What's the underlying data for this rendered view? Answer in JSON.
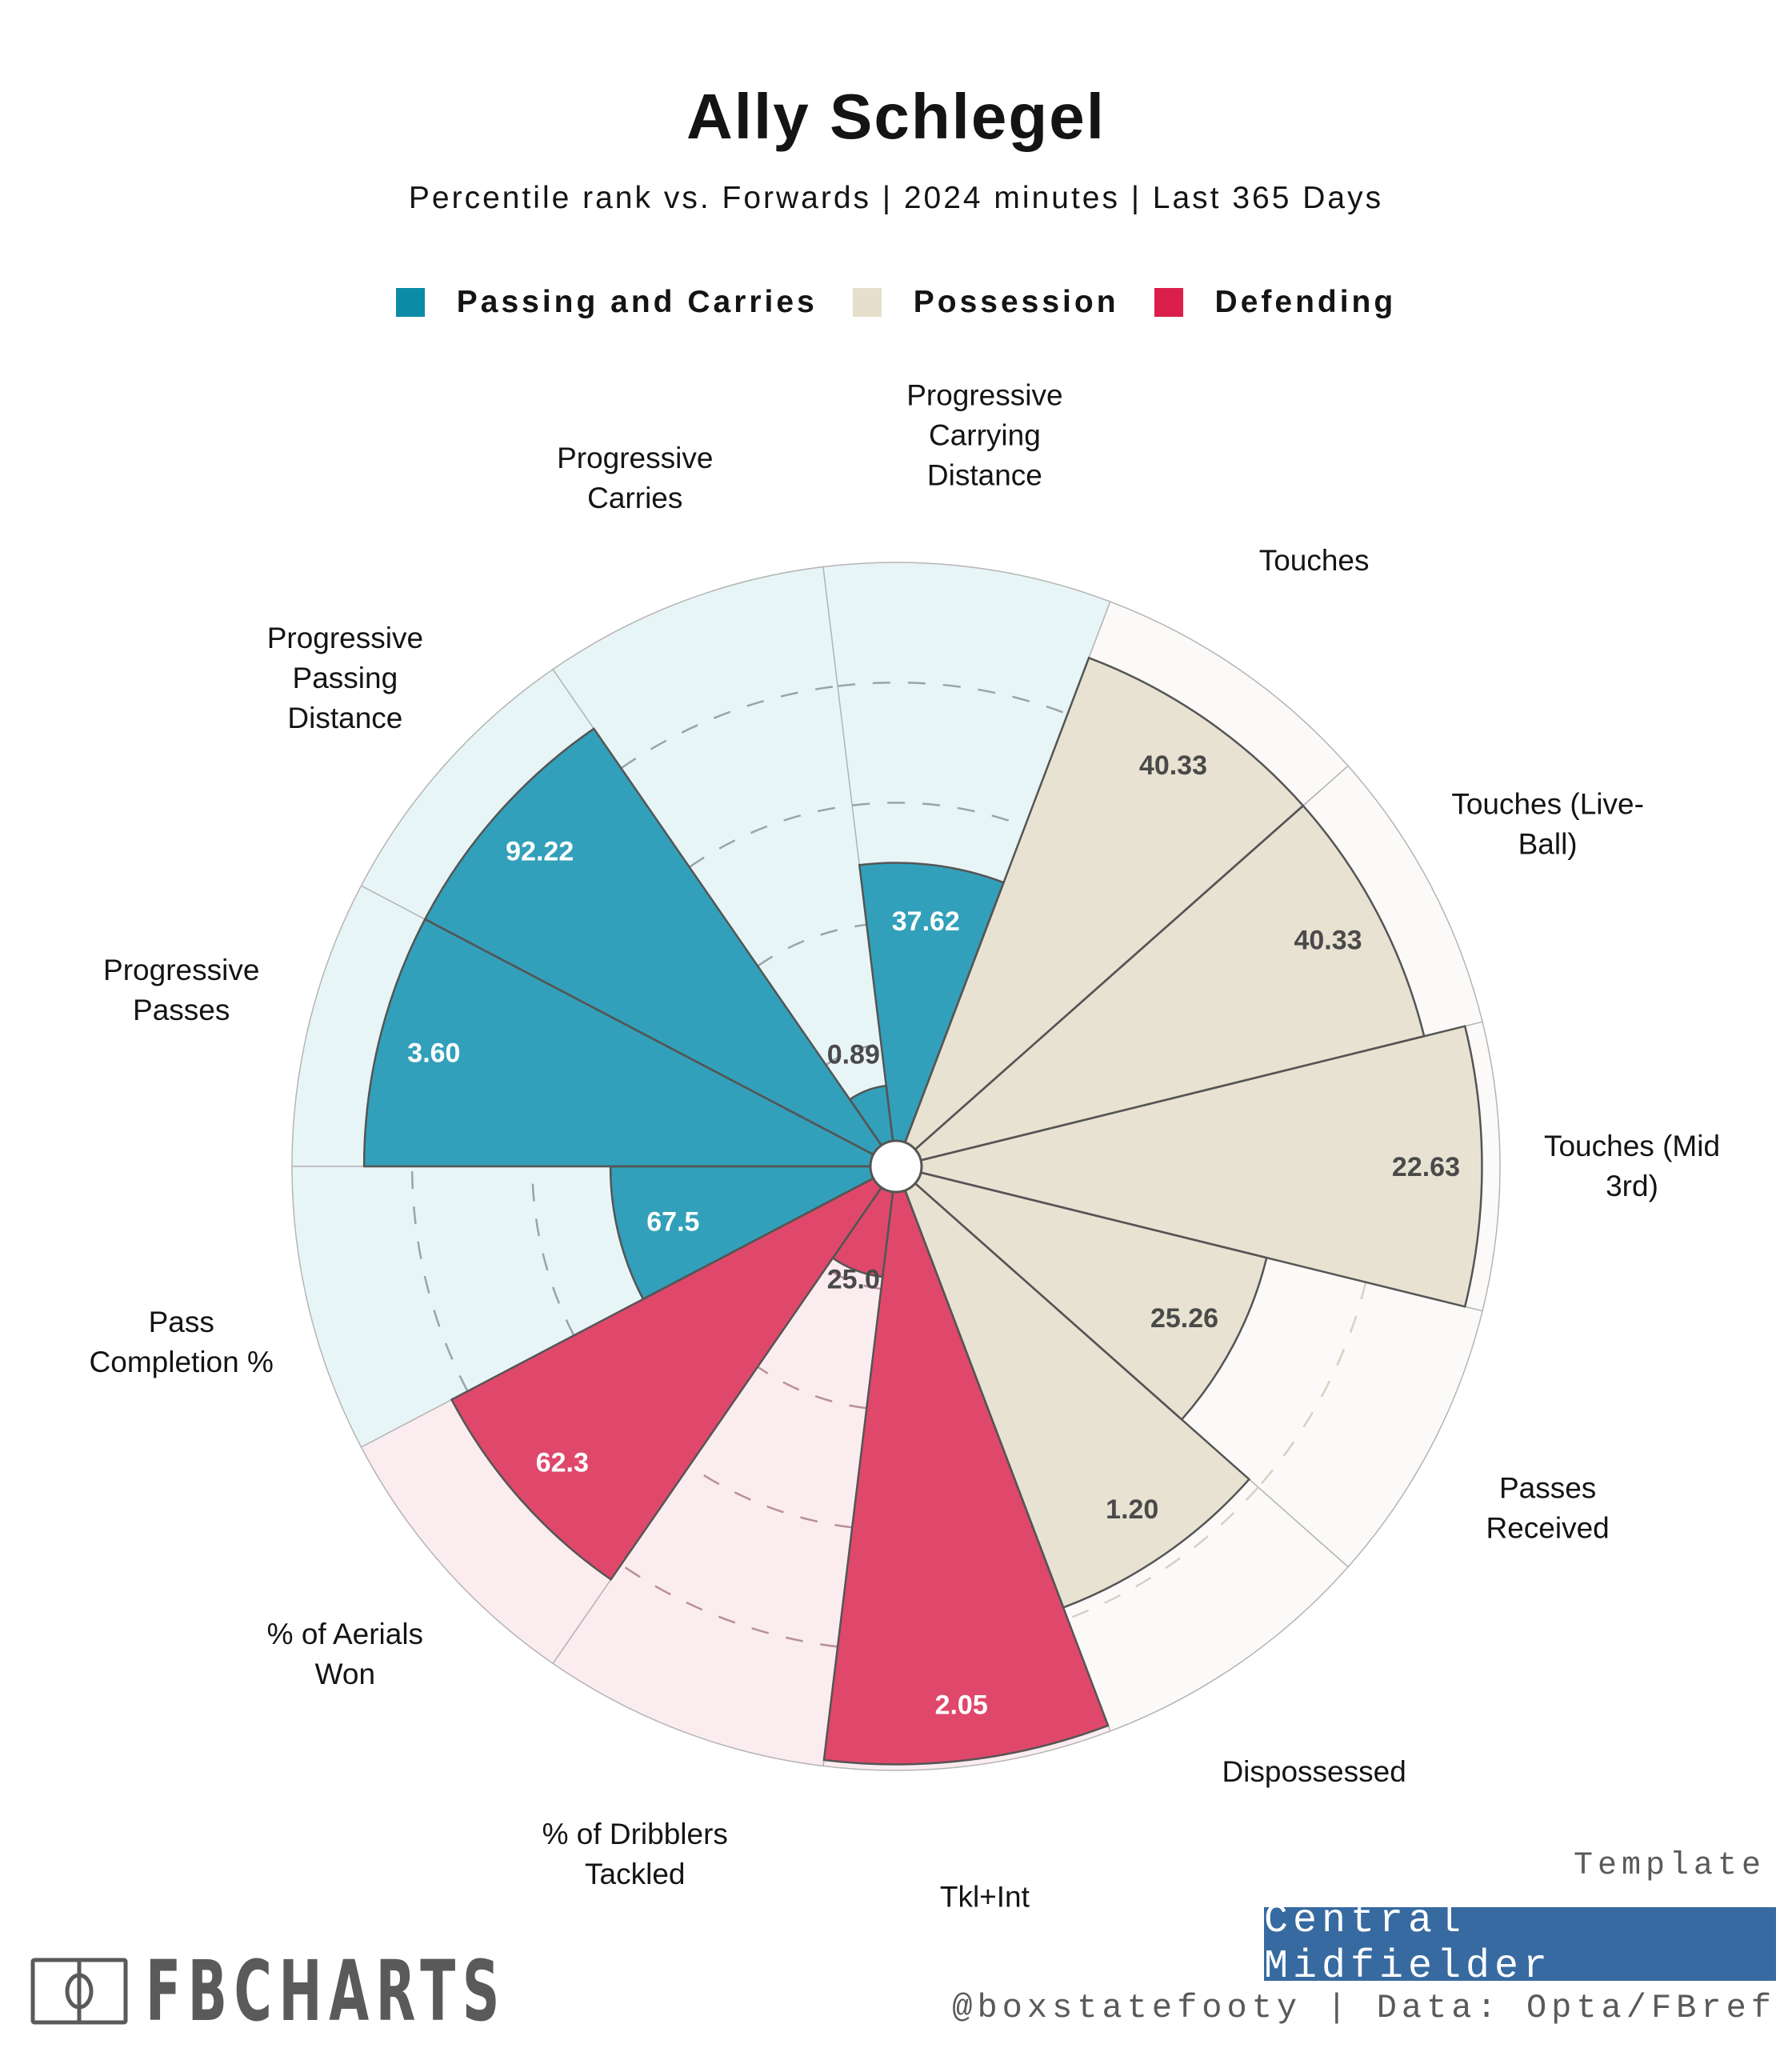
{
  "header": {
    "title": "Ally Schlegel",
    "subtitle": "Percentile rank vs. Forwards | 2024 minutes | Last 365 Days"
  },
  "legend": [
    {
      "label": "Passing and Carries",
      "color": "#0b8ba6"
    },
    {
      "label": "Possession",
      "color": "#e6dfcb"
    },
    {
      "label": "Defending",
      "color": "#dc1f4a"
    }
  ],
  "colors": {
    "passing_bar": "#32a0ba",
    "passing_bg": "#e8f5f7",
    "possession_bar": "#e8e2d2",
    "possession_bg": "#fbfaf8",
    "defending_bar": "#e0486b",
    "defending_bg": "#fbecf0",
    "light_value_text": "#ffffff",
    "dark_value_text": "#4a4a4a"
  },
  "chart_data": {
    "type": "polar-bar",
    "title": "Ally Schlegel",
    "subtitle": "Percentile rank vs. Forwards | 2024 minutes | Last 365 Days",
    "rlim": [
      0,
      100
    ],
    "gridlines": [
      20,
      40,
      60,
      80
    ],
    "legend_position": "top",
    "start_angle_deg": 180,
    "direction": "clockwise",
    "categories": [
      {
        "label": [
          "Progressive",
          "Passes"
        ],
        "group": "passing",
        "value_label": "3.60",
        "percentile": 88
      },
      {
        "label": [
          "Progressive",
          "Passing",
          "Distance"
        ],
        "group": "passing",
        "value_label": "92.22",
        "percentile": 88
      },
      {
        "label": [
          "Progressive",
          "Carries"
        ],
        "group": "passing",
        "value_label": "0.89",
        "percentile": 13
      },
      {
        "label": [
          "Progressive",
          "Carrying",
          "Distance"
        ],
        "group": "passing",
        "value_label": "37.62",
        "percentile": 50
      },
      {
        "label": [
          "Touches"
        ],
        "group": "possession",
        "value_label": "40.33",
        "percentile": 90
      },
      {
        "label": [
          "Touches (Live-",
          "Ball)"
        ],
        "group": "possession",
        "value_label": "40.33",
        "percentile": 90
      },
      {
        "label": [
          "Touches (Mid",
          "3rd)"
        ],
        "group": "possession",
        "value_label": "22.63",
        "percentile": 97
      },
      {
        "label": [
          "Passes",
          "Received"
        ],
        "group": "possession",
        "value_label": "25.26",
        "percentile": 63
      },
      {
        "label": [
          "Dispossessed"
        ],
        "group": "possession",
        "value_label": "1.20",
        "percentile": 78
      },
      {
        "label": [
          "Tkl+Int"
        ],
        "group": "defending",
        "value_label": "2.05",
        "percentile": 99
      },
      {
        "label": [
          "% of Dribblers",
          "Tackled"
        ],
        "group": "defending",
        "value_label": "25.0",
        "percentile": 18
      },
      {
        "label": [
          "% of Aerials",
          "Won"
        ],
        "group": "defending",
        "value_label": "62.3",
        "percentile": 83
      },
      {
        "label": [
          "Pass",
          "Completion %"
        ],
        "group": "passing",
        "value_label": "67.5",
        "percentile": 47
      }
    ]
  },
  "footer": {
    "logo_text": "FBCHARTS",
    "template_caption": "Template",
    "template_name": "Central Midfielder",
    "credit": "@boxstatefooty | Data: Opta/FBref"
  }
}
